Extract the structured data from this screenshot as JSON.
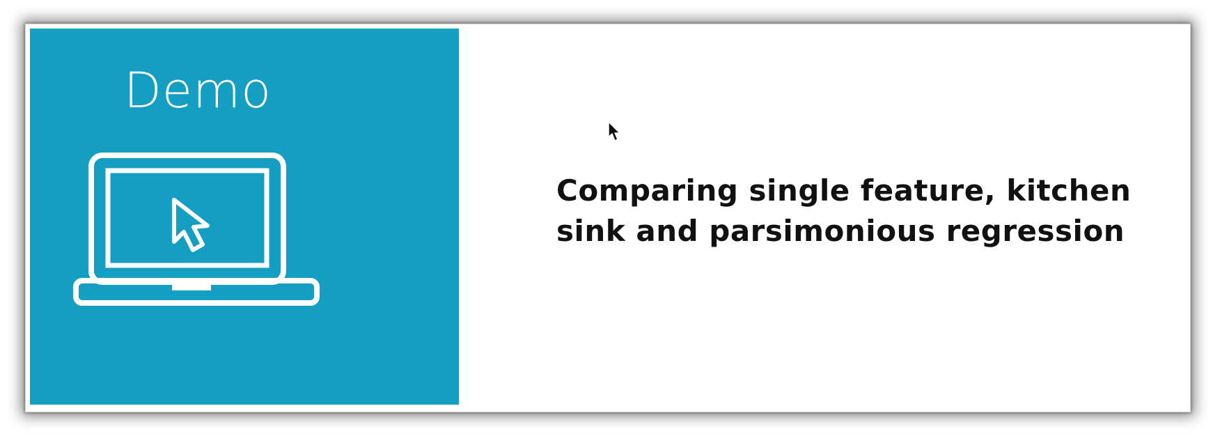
{
  "slide": {
    "panel_title": "Demo",
    "heading_line1": "Comparing single feature, kitchen",
    "heading_line2": "sink and parsimonious regression"
  },
  "icons": {
    "laptop": "laptop-icon",
    "pointer_in_screen": "cursor-arrow-icon",
    "mouse": "mouse-cursor-icon"
  },
  "colors": {
    "accent": "#149ec2",
    "heading_text": "#111111",
    "panel_text": "#ffffff",
    "background": "#ffffff"
  }
}
